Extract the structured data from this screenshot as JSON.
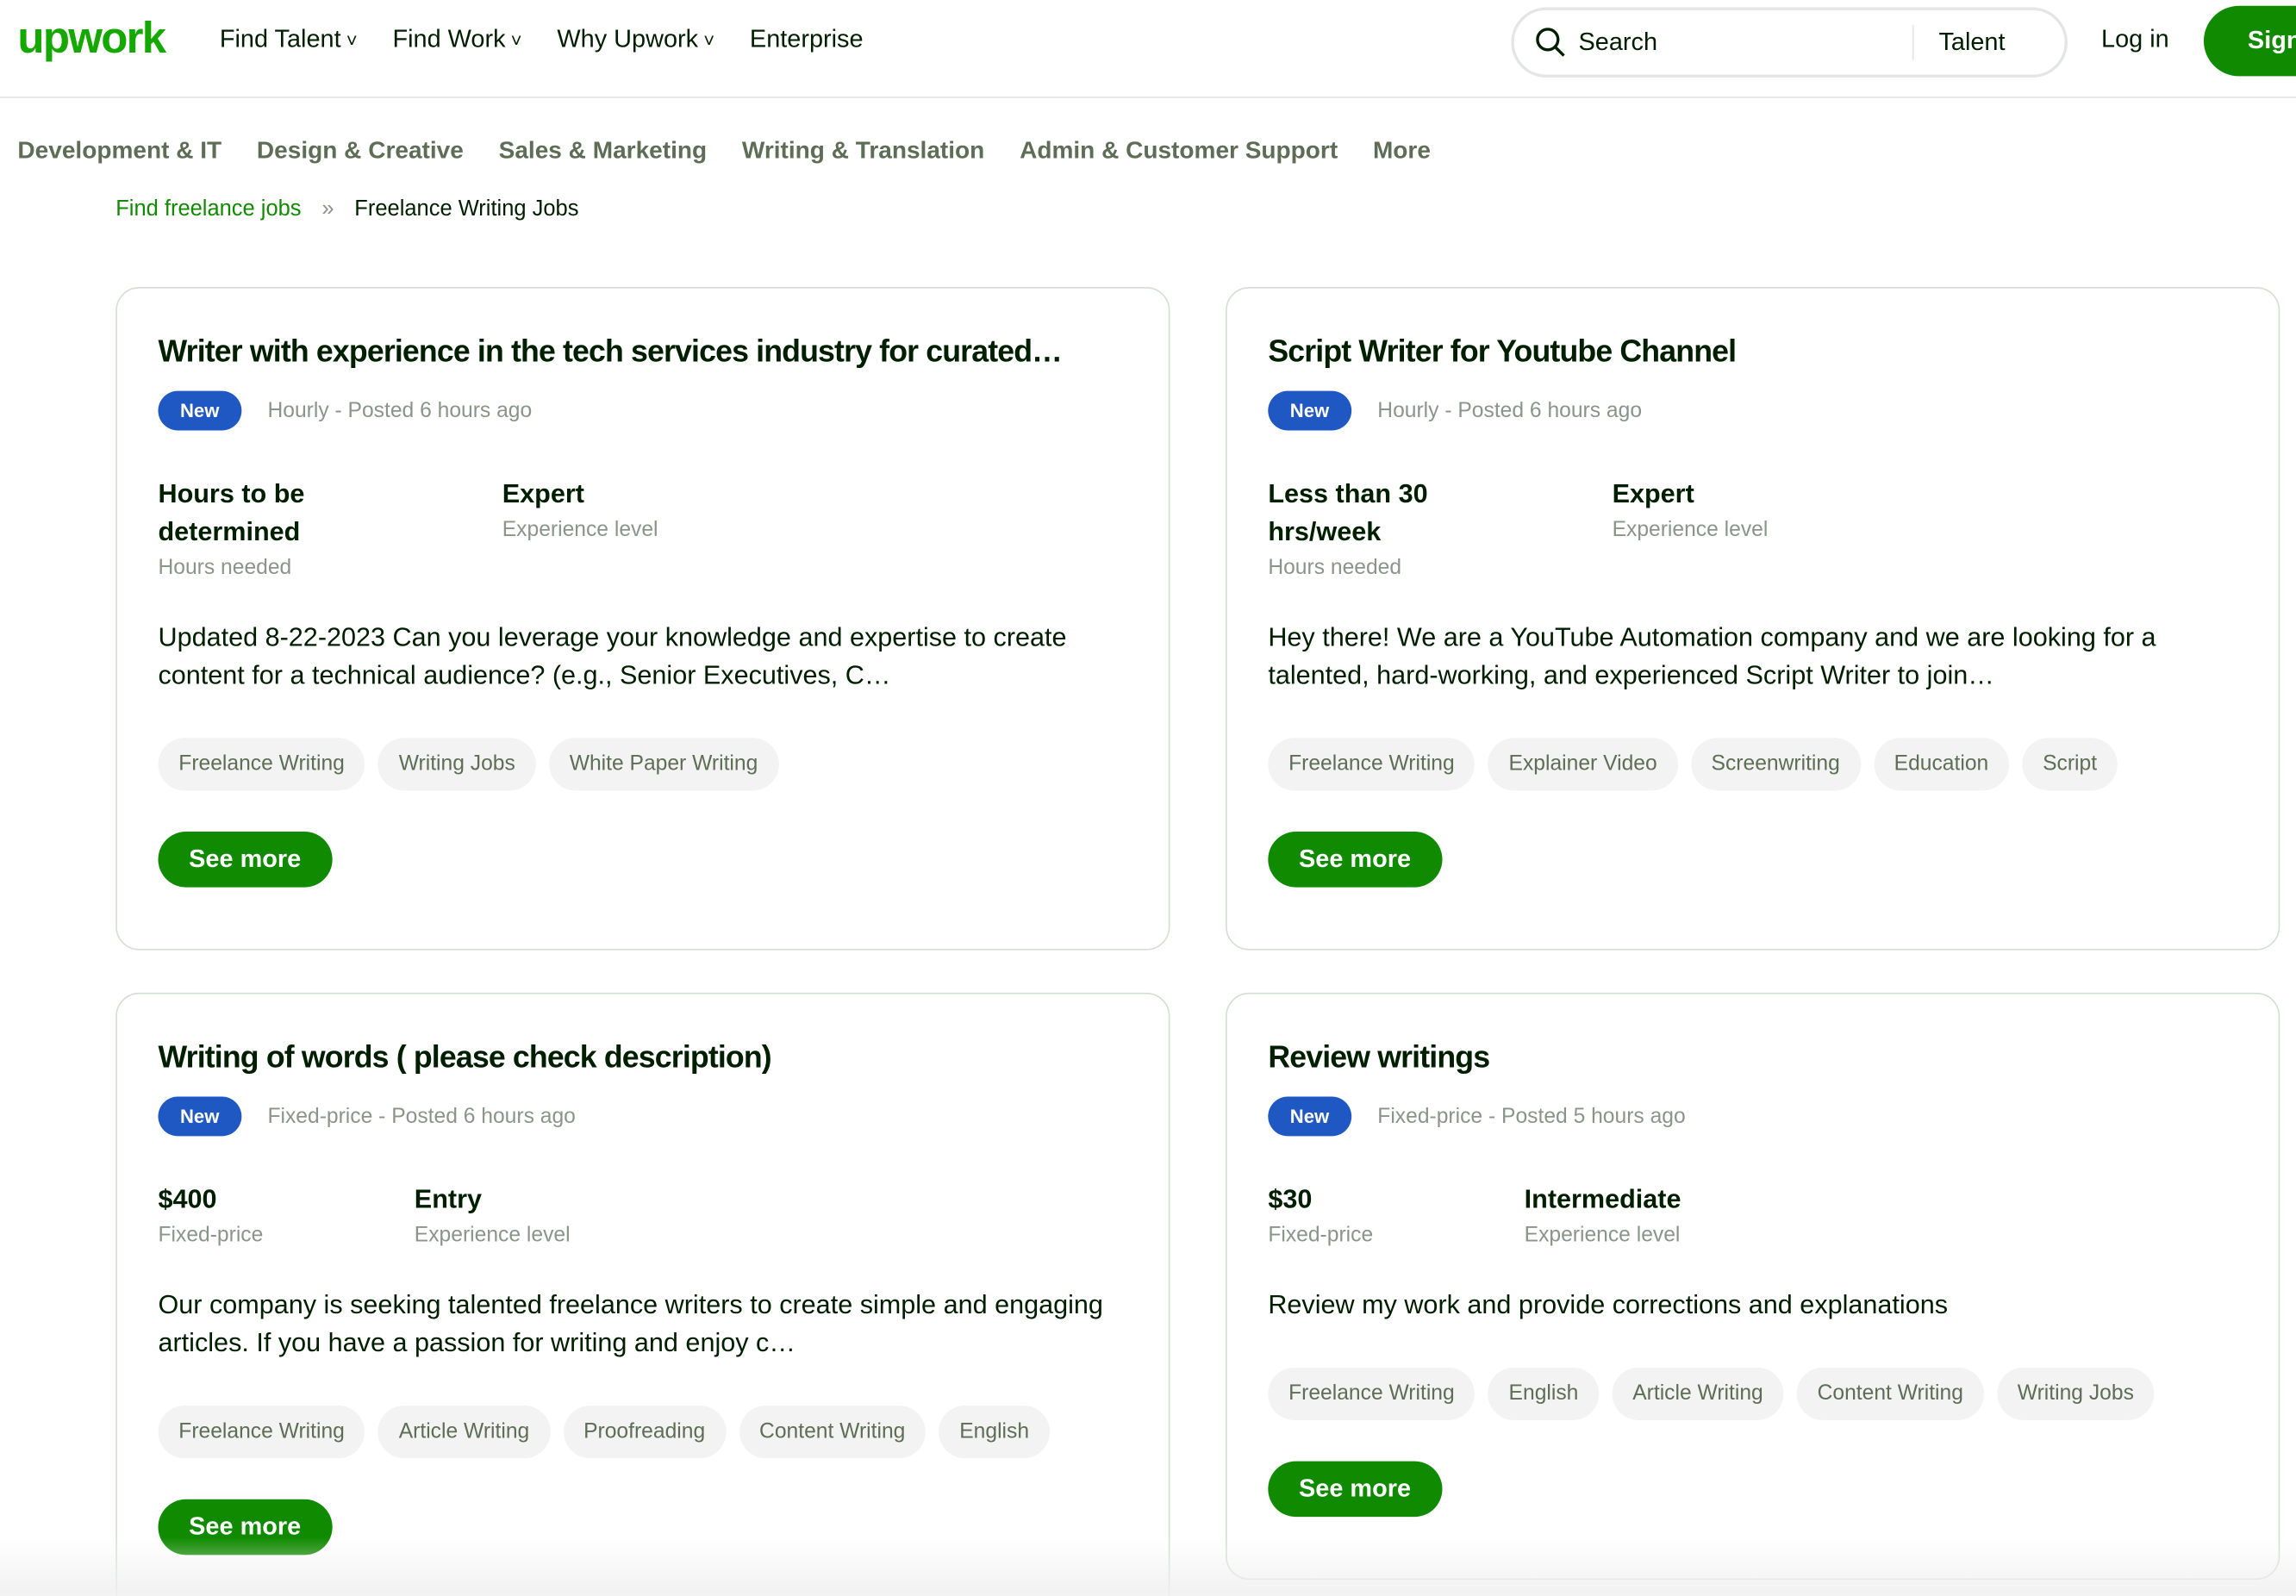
{
  "nav": {
    "logo": "upwork",
    "links": [
      "Find Talent",
      "Find Work",
      "Why Upwork",
      "Enterprise"
    ],
    "search": "Search",
    "search_type": "Talent",
    "login": "Log in",
    "signup": "Sign"
  },
  "categories": [
    "Development & IT",
    "Design & Creative",
    "Sales & Marketing",
    "Writing & Translation",
    "Admin & Customer Support",
    "More"
  ],
  "breadcrumb": [
    "Find freelance jobs",
    "Freelance Writing Jobs"
  ],
  "jobs": [
    {
      "title": "Writer with experience in the tech services industry for curated…",
      "badge": "New",
      "meta": "Hourly - Posted 6 hours ago",
      "stats": [
        {
          "value": "Hours to be determined",
          "label": "Hours needed"
        },
        {
          "value": "Expert",
          "label": "Experience level"
        }
      ],
      "description": "Updated 8-22-2023 Can you leverage your knowledge and expertise to create content for a technical audience? (e.g., Senior Executives, C…",
      "tags": [
        "Freelance Writing",
        "Writing Jobs",
        "White Paper Writing"
      ],
      "button": "See more"
    },
    {
      "title": "Script Writer for Youtube Channel",
      "badge": "New",
      "meta": "Hourly - Posted 6 hours ago",
      "stats": [
        {
          "value": "Less than 30 hrs/week",
          "label": "Hours needed"
        },
        {
          "value": "Expert",
          "label": "Experience level"
        }
      ],
      "description": "Hey there! We are a YouTube Automation company and we are looking for a talented, hard-working, and experienced Script Writer to join…",
      "tags": [
        "Freelance Writing",
        "Explainer Video",
        "Screenwriting",
        "Education",
        "Script"
      ],
      "button": "See more"
    },
    {
      "title": "Writing of words ( please check description)",
      "badge": "New",
      "meta": "Fixed-price - Posted 6 hours ago",
      "stats": [
        {
          "value": "$400",
          "label": "Fixed-price"
        },
        {
          "value": "Entry",
          "label": "Experience level"
        }
      ],
      "description": "Our company is seeking talented freelance writers to create simple and engaging articles. If you have a passion for writing and enjoy c…",
      "tags": [
        "Freelance Writing",
        "Article Writing",
        "Proofreading",
        "Content Writing",
        "English"
      ],
      "button": "See more"
    },
    {
      "title": "Review writings",
      "badge": "New",
      "meta": "Fixed-price - Posted 5 hours ago",
      "stats": [
        {
          "value": "$30",
          "label": "Fixed-price"
        },
        {
          "value": "Intermediate",
          "label": "Experience level"
        }
      ],
      "description": "Review my work and provide corrections and explanations",
      "tags": [
        "Freelance Writing",
        "English",
        "Article Writing",
        "Content Writing",
        "Writing Jobs"
      ],
      "button": "See more"
    }
  ]
}
